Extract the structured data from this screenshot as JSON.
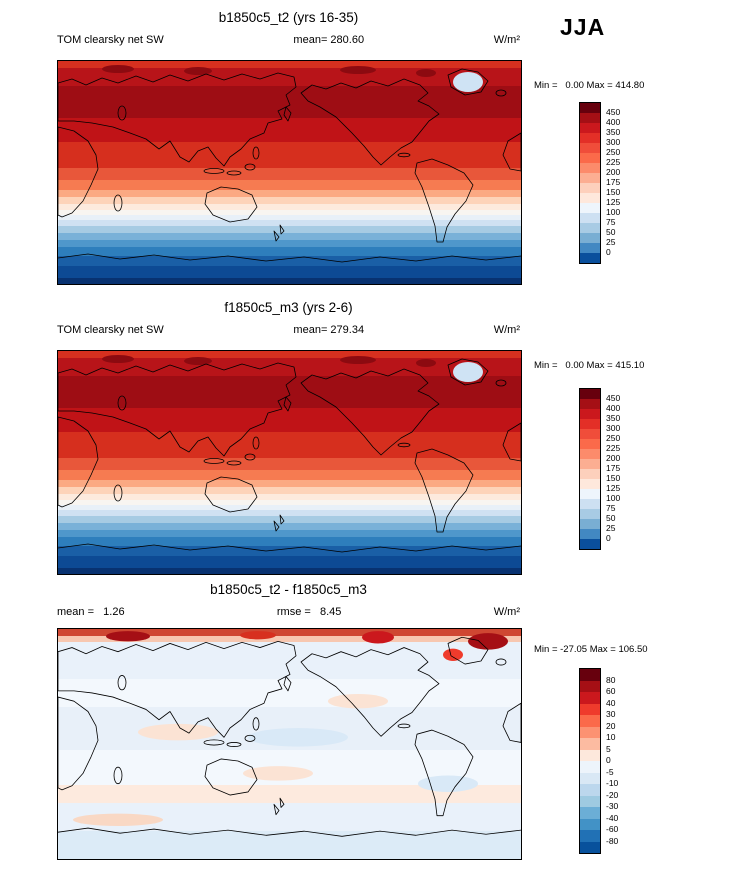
{
  "header": {
    "season_label": "JJA"
  },
  "chart_data": [
    {
      "type": "heatmap",
      "panel": "top",
      "title": "b1850c5_t2 (yrs 16-35)",
      "variable": "TOM clearsky net SW",
      "units": "W/m²",
      "season": "JJA",
      "mean": 280.6,
      "min": 0.0,
      "max": 414.8,
      "mean_text": "mean= 280.60",
      "minmax_text": "Min =   0.00 Max = 414.80",
      "projection": "global lat-lon 0-360E centered on 180, 90N top to 90S bottom",
      "colorbar": {
        "levels": [
          450,
          400,
          350,
          300,
          250,
          225,
          200,
          175,
          150,
          125,
          100,
          75,
          50,
          25,
          0
        ],
        "colors": [
          "#67000d",
          "#a50f15",
          "#cb181d",
          "#e32f27",
          "#f04d3a",
          "#fb6a4a",
          "#fc8b6b",
          "#fcae92",
          "#fdd0bc",
          "#fee8dc",
          "#eef5fc",
          "#cde0f2",
          "#a8cbe4",
          "#79aed3",
          "#4288c2",
          "#0a4f9c"
        ]
      },
      "map_bands": [
        {
          "frac": 0.03,
          "color": "#d7301f"
        },
        {
          "frac": 0.085,
          "color": "#b81419"
        },
        {
          "frac": 0.15,
          "color": "#9e0d14"
        },
        {
          "frac": 0.11,
          "color": "#c01317"
        },
        {
          "frac": 0.12,
          "color": "#d62f1e"
        },
        {
          "frac": 0.055,
          "color": "#e8573a"
        },
        {
          "frac": 0.045,
          "color": "#f67b51"
        },
        {
          "frac": 0.035,
          "color": "#fba983"
        },
        {
          "frac": 0.03,
          "color": "#fdd3b9"
        },
        {
          "frac": 0.028,
          "color": "#fdeadd"
        },
        {
          "frac": 0.022,
          "color": "#f8f5f1"
        },
        {
          "frac": 0.025,
          "color": "#e8f0f8"
        },
        {
          "frac": 0.028,
          "color": "#cfe1f2"
        },
        {
          "frac": 0.03,
          "color": "#a6cbe3"
        },
        {
          "frac": 0.032,
          "color": "#79b1d8"
        },
        {
          "frac": 0.035,
          "color": "#4f97cb"
        },
        {
          "frac": 0.04,
          "color": "#2e7ebc"
        },
        {
          "frac": 0.045,
          "color": "#1a5fa6"
        },
        {
          "frac": 0.055,
          "color": "#0d4a94"
        },
        {
          "frac": 0.03,
          "color": "#083271"
        }
      ]
    },
    {
      "type": "heatmap",
      "panel": "middle",
      "title": "f1850c5_m3 (yrs 2-6)",
      "variable": "TOM clearsky net SW",
      "units": "W/m²",
      "season": "JJA",
      "mean": 279.34,
      "min": 0.0,
      "max": 415.1,
      "mean_text": "mean= 279.34",
      "minmax_text": "Min =   0.00 Max = 415.10",
      "projection": "global lat-lon 0-360E centered on 180, 90N top to 90S bottom",
      "colorbar": {
        "levels": [
          450,
          400,
          350,
          300,
          250,
          225,
          200,
          175,
          150,
          125,
          100,
          75,
          50,
          25,
          0
        ],
        "colors": [
          "#67000d",
          "#a50f15",
          "#cb181d",
          "#e32f27",
          "#f04d3a",
          "#fb6a4a",
          "#fc8b6b",
          "#fcae92",
          "#fdd0bc",
          "#fee8dc",
          "#eef5fc",
          "#cde0f2",
          "#a8cbe4",
          "#79aed3",
          "#4288c2",
          "#0a4f9c"
        ]
      },
      "map_bands": [
        {
          "frac": 0.03,
          "color": "#d7301f"
        },
        {
          "frac": 0.085,
          "color": "#b81419"
        },
        {
          "frac": 0.15,
          "color": "#9e0d14"
        },
        {
          "frac": 0.11,
          "color": "#c01317"
        },
        {
          "frac": 0.12,
          "color": "#d62f1e"
        },
        {
          "frac": 0.055,
          "color": "#e8573a"
        },
        {
          "frac": 0.045,
          "color": "#f67b51"
        },
        {
          "frac": 0.035,
          "color": "#fba983"
        },
        {
          "frac": 0.03,
          "color": "#fdd3b9"
        },
        {
          "frac": 0.028,
          "color": "#fdeadd"
        },
        {
          "frac": 0.022,
          "color": "#f8f5f1"
        },
        {
          "frac": 0.025,
          "color": "#e8f0f8"
        },
        {
          "frac": 0.028,
          "color": "#cfe1f2"
        },
        {
          "frac": 0.03,
          "color": "#a6cbe3"
        },
        {
          "frac": 0.032,
          "color": "#79b1d8"
        },
        {
          "frac": 0.035,
          "color": "#4f97cb"
        },
        {
          "frac": 0.04,
          "color": "#2e7ebc"
        },
        {
          "frac": 0.045,
          "color": "#1a5fa6"
        },
        {
          "frac": 0.055,
          "color": "#0d4a94"
        },
        {
          "frac": 0.03,
          "color": "#083271"
        }
      ]
    },
    {
      "type": "heatmap",
      "panel": "bottom-difference",
      "title": "b1850c5_t2 - f1850c5_m3",
      "units": "W/m²",
      "season": "JJA",
      "mean": 1.26,
      "rmse": 8.45,
      "min": -27.05,
      "max": 106.5,
      "mean_text": "mean =   1.26",
      "rmse_text": "rmse =   8.45",
      "minmax_text": "Min = -27.05 Max = 106.50",
      "projection": "global lat-lon 0-360E centered on 180, 90N top to 90S bottom",
      "colorbar": {
        "levels": [
          80,
          60,
          40,
          30,
          20,
          10,
          5,
          0,
          -5,
          -10,
          -20,
          -30,
          -40,
          -60,
          -80
        ],
        "colors": [
          "#67000d",
          "#a50f15",
          "#cb181d",
          "#ef3b2c",
          "#fb6a4a",
          "#fc9272",
          "#fcbba1",
          "#fde8dc",
          "#edf4fb",
          "#d9e8f5",
          "#bcd7ed",
          "#9ecae1",
          "#6baed6",
          "#4292c6",
          "#2171b5",
          "#08519c"
        ]
      },
      "map_bands": [
        {
          "frac": 0.032,
          "color": "#cf4732"
        },
        {
          "frac": 0.026,
          "color": "#f7c7b0"
        },
        {
          "frac": 0.16,
          "color": "#e9f1fa"
        },
        {
          "frac": 0.12,
          "color": "#f3f8fd"
        },
        {
          "frac": 0.19,
          "color": "#e8f0f9"
        },
        {
          "frac": 0.15,
          "color": "#f3f8fd"
        },
        {
          "frac": 0.08,
          "color": "#fdeade"
        },
        {
          "frac": 0.12,
          "color": "#e9f1fa"
        },
        {
          "frac": 0.122,
          "color": "#dcebf7"
        }
      ]
    }
  ]
}
